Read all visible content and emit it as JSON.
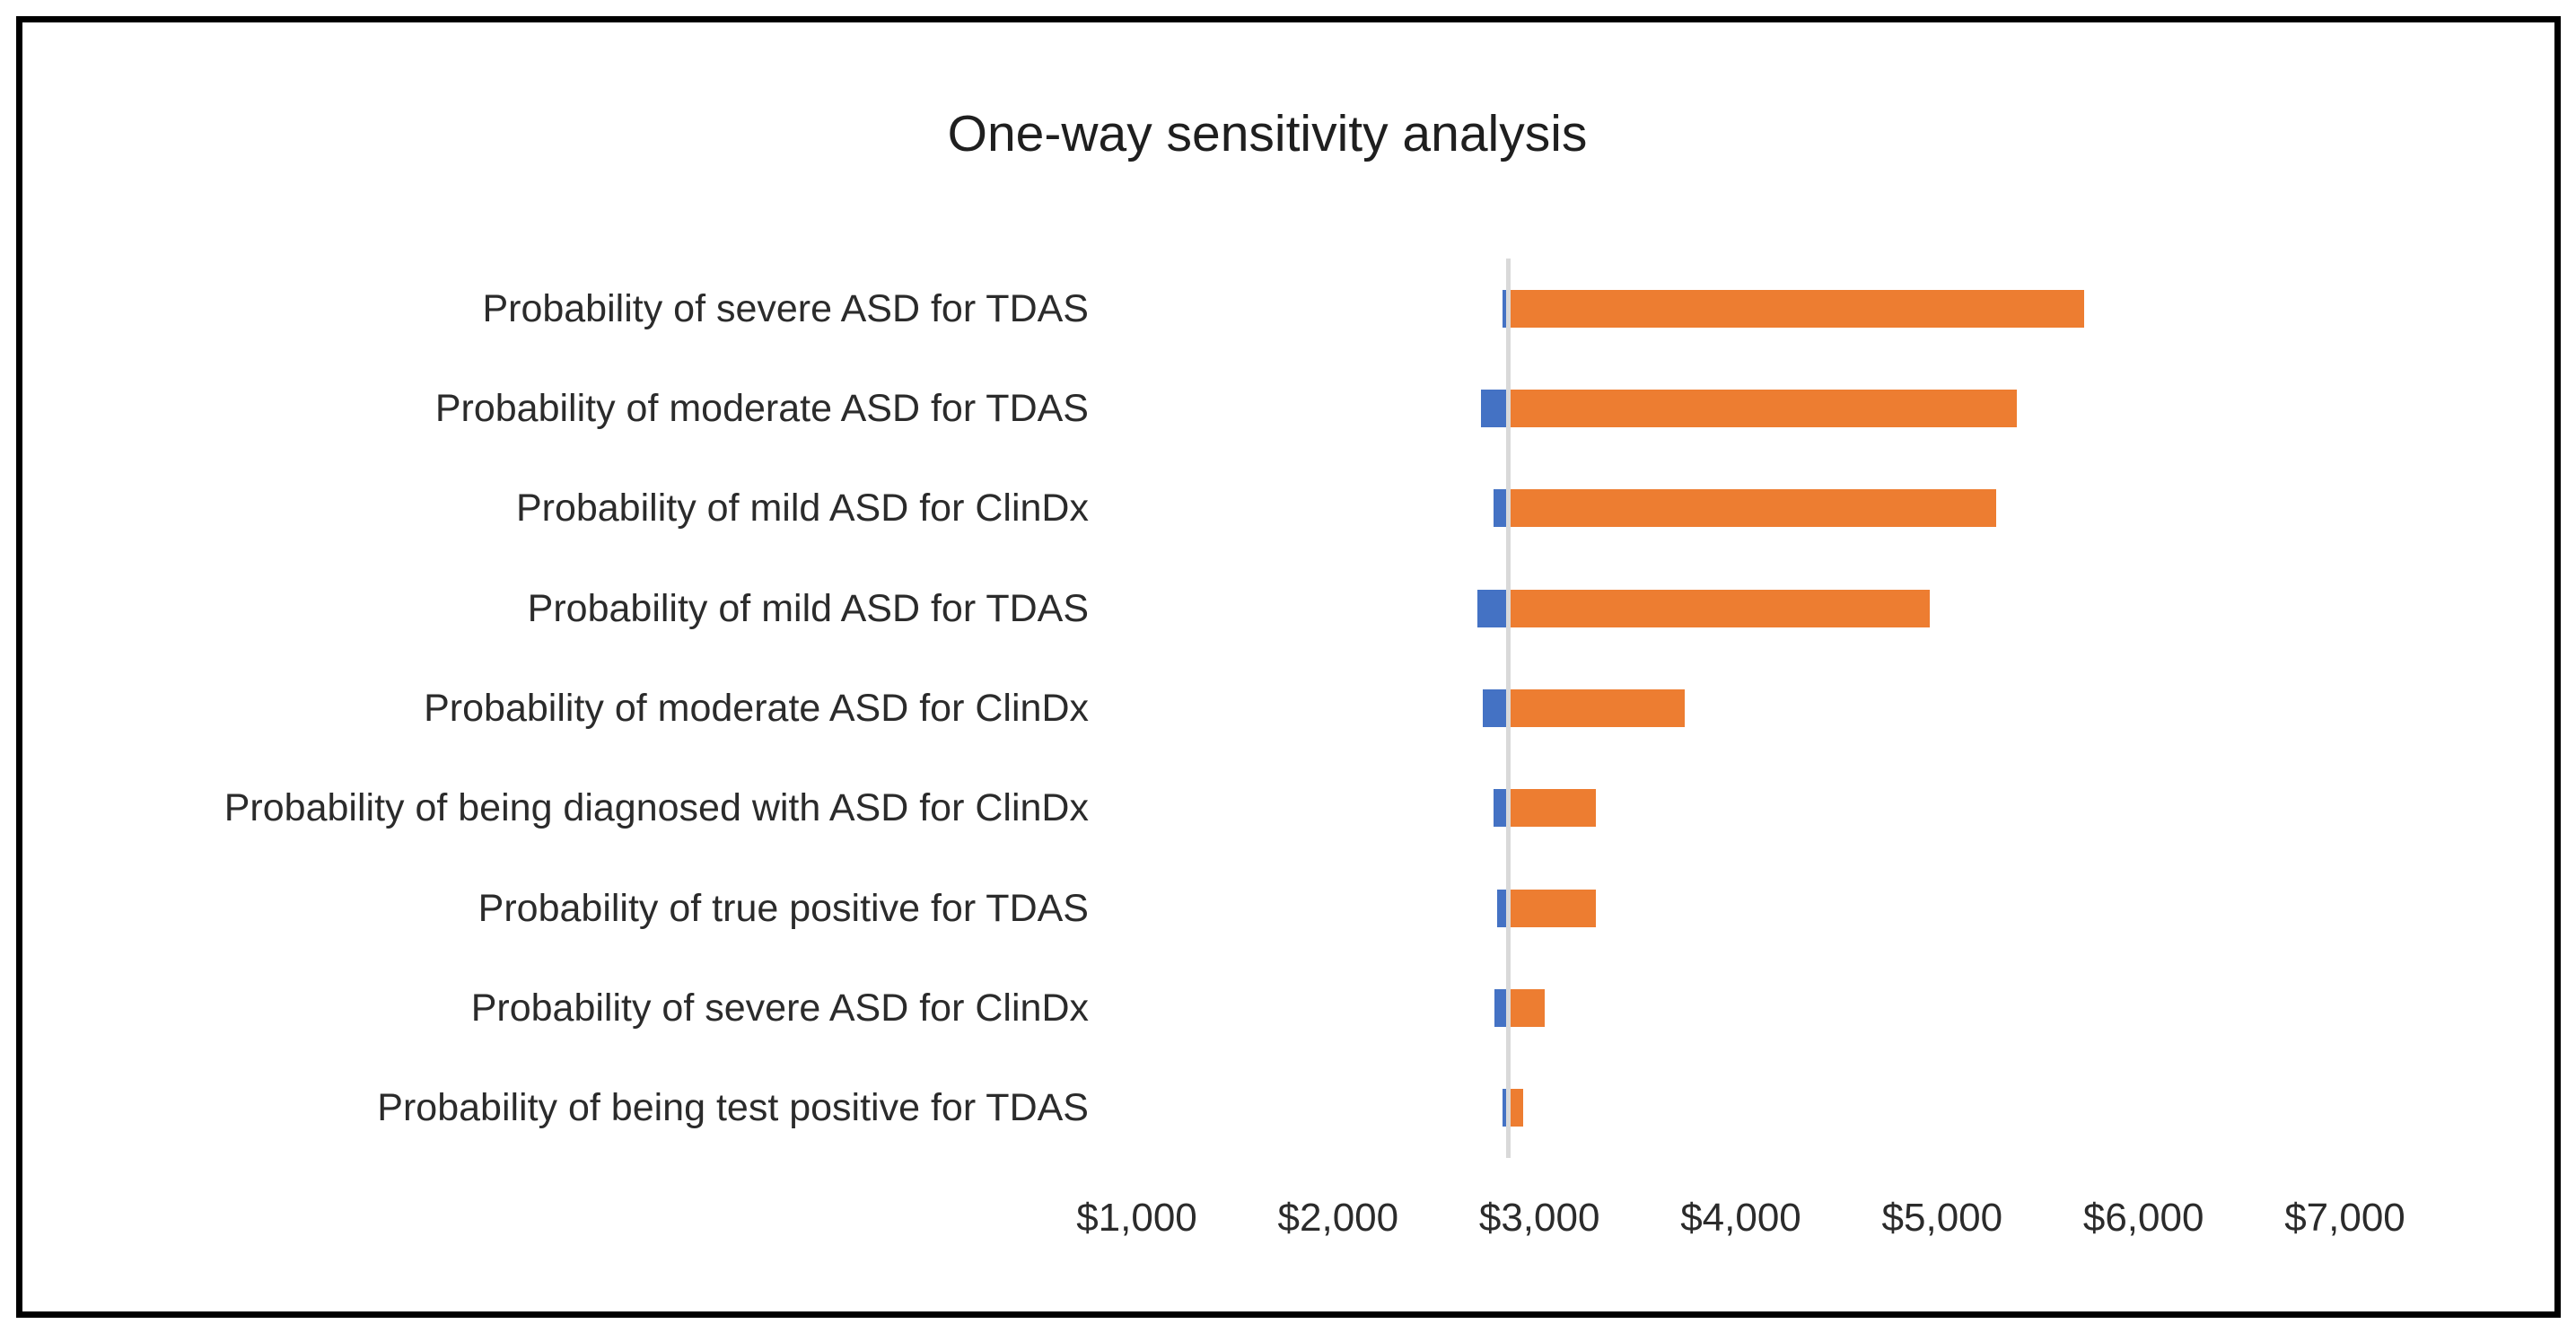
{
  "title": "One-way sensitivity analysis",
  "colors": {
    "low_bar": "#4472C4",
    "high_bar": "#ED7D31",
    "baseline": "#D9D9D9",
    "frame_border": "#000000",
    "text": "#2b2b2b"
  },
  "chart_data": {
    "type": "bar",
    "subtype": "tornado",
    "title": "One-way sensitivity analysis",
    "xlabel": "",
    "ylabel": "",
    "grid": false,
    "legend_position": "none",
    "base_value": 2845,
    "xlim": [
      1000,
      7000
    ],
    "xticks": [
      {
        "value": 1000,
        "label": "$1,000"
      },
      {
        "value": 2000,
        "label": "$2,000"
      },
      {
        "value": 3000,
        "label": "$3,000"
      },
      {
        "value": 4000,
        "label": "$4,000"
      },
      {
        "value": 5000,
        "label": "$5,000"
      },
      {
        "value": 6000,
        "label": "$6,000"
      },
      {
        "value": 7000,
        "label": "$7,000"
      }
    ],
    "categories": [
      "Probability of severe ASD for TDAS",
      "Probability of moderate ASD for TDAS",
      "Probability of mild ASD for ClinDx",
      "Probability of mild ASD for TDAS",
      "Probability of moderate ASD for ClinDx",
      "Probability of being diagnosed with ASD for ClinDx",
      "Probability of true positive for TDAS",
      "Probability of severe ASD for ClinDx",
      "Probability of being test positive for TDAS"
    ],
    "series": [
      {
        "name": "low",
        "color": "#4472C4",
        "values": [
          2815,
          2710,
          2770,
          2690,
          2720,
          2770,
          2790,
          2775,
          2815
        ]
      },
      {
        "name": "high",
        "color": "#ED7D31",
        "values": [
          5705,
          5370,
          5270,
          4940,
          3720,
          3280,
          3280,
          3025,
          2920
        ]
      }
    ]
  }
}
